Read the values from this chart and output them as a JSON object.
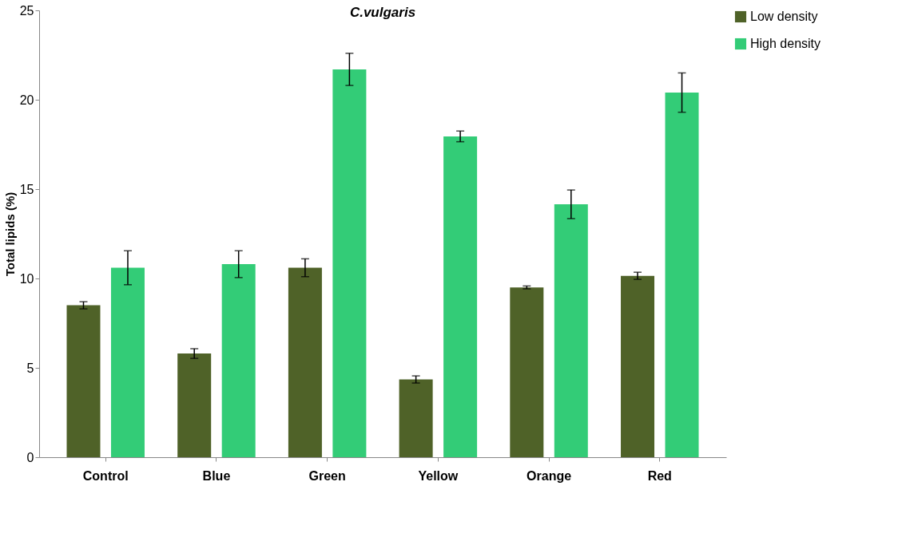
{
  "chart_data": {
    "type": "bar",
    "title": "C.vulgaris",
    "ylabel": "Total lipids (%)",
    "categories": [
      "Control",
      "Blue",
      "Green",
      "Yellow",
      "Orange",
      "Red"
    ],
    "series": [
      {
        "name": "Low density",
        "color": "#4f6228",
        "values": [
          8.5,
          5.8,
          10.6,
          4.35,
          9.5,
          10.15
        ],
        "errors": [
          0.2,
          0.27,
          0.5,
          0.2,
          0.08,
          0.2
        ]
      },
      {
        "name": "High density",
        "color": "#33cc77",
        "values": [
          10.6,
          10.8,
          21.7,
          17.95,
          14.15,
          20.4
        ],
        "errors": [
          0.95,
          0.75,
          0.9,
          0.3,
          0.8,
          1.1
        ]
      }
    ],
    "ylim": [
      0,
      25
    ],
    "yticks": [
      0,
      5,
      10,
      15,
      20,
      25
    ],
    "grid": false,
    "legend": "right"
  }
}
